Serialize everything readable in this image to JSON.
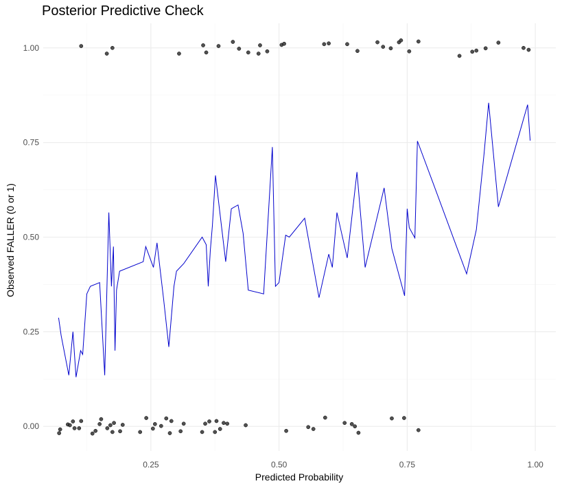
{
  "chart_data": {
    "type": "scatter",
    "title": "Posterior Predictive Check",
    "xlabel": "Predicted Probability",
    "ylabel": "Observed FALLER (0 or 1)",
    "xlim": [
      0.04,
      1.04
    ],
    "ylim": [
      -0.065,
      1.065
    ],
    "x_ticks": [
      0.25,
      0.5,
      0.75,
      1.0
    ],
    "x_tick_labels": [
      "0.25",
      "0.50",
      "0.75",
      "1.00"
    ],
    "y_ticks": [
      0.0,
      0.25,
      0.5,
      0.75,
      1.0
    ],
    "y_tick_labels": [
      "0.00",
      "0.25",
      "0.50",
      "0.75",
      "1.00"
    ],
    "grid": true,
    "colors": {
      "points": "#333333",
      "line": "#0000cc",
      "grid_major": "#ebebeb",
      "grid_minor": "#f5f5f5"
    },
    "series": [
      {
        "kind": "points",
        "x": [
          0.071,
          0.073,
          0.088,
          0.092,
          0.098,
          0.101,
          0.11,
          0.114,
          0.136,
          0.142,
          0.15,
          0.153,
          0.165,
          0.171,
          0.175,
          0.178,
          0.19,
          0.195,
          0.229,
          0.241,
          0.254,
          0.258,
          0.27,
          0.28,
          0.287,
          0.29,
          0.308,
          0.314,
          0.35,
          0.356,
          0.364,
          0.375,
          0.378,
          0.385,
          0.392,
          0.399,
          0.435,
          0.514,
          0.557,
          0.567,
          0.59,
          0.642,
          0.648,
          0.628,
          0.655,
          0.72,
          0.744,
          0.772,
          0.114,
          0.164,
          0.175,
          0.305,
          0.352,
          0.358,
          0.382,
          0.41,
          0.422,
          0.44,
          0.46,
          0.463,
          0.477,
          0.505,
          0.51,
          0.588,
          0.597,
          0.633,
          0.653,
          0.692,
          0.703,
          0.718,
          0.734,
          0.738,
          0.754,
          0.772,
          0.852,
          0.877,
          0.885,
          0.903,
          0.928,
          0.977,
          0.987
        ],
        "y": [
          -0.018,
          -0.008,
          0.005,
          0.003,
          0.013,
          -0.005,
          -0.005,
          0.014,
          -0.019,
          -0.012,
          0.006,
          0.019,
          -0.005,
          0.003,
          -0.015,
          0.009,
          -0.013,
          0.004,
          -0.015,
          0.022,
          -0.006,
          0.006,
          0.001,
          0.021,
          -0.018,
          0.014,
          -0.013,
          0.007,
          -0.015,
          0.007,
          0.013,
          -0.015,
          0.014,
          -0.007,
          0.009,
          0.007,
          0.003,
          -0.012,
          -0.002,
          -0.007,
          0.023,
          0.006,
          0.0,
          0.009,
          -0.017,
          0.021,
          0.022,
          -0.01,
          1.005,
          0.985,
          1.0,
          0.985,
          1.007,
          0.988,
          1.005,
          1.016,
          0.998,
          0.988,
          0.985,
          1.007,
          0.991,
          1.008,
          1.011,
          1.01,
          1.012,
          1.01,
          0.992,
          1.015,
          1.003,
          0.999,
          1.015,
          1.02,
          0.991,
          1.017,
          0.979,
          0.99,
          0.993,
          0.999,
          1.014,
          1.0,
          0.995
        ]
      },
      {
        "kind": "line",
        "x": [
          0.07,
          0.075,
          0.09,
          0.098,
          0.104,
          0.113,
          0.117,
          0.125,
          0.132,
          0.15,
          0.16,
          0.168,
          0.173,
          0.177,
          0.18,
          0.183,
          0.189,
          0.235,
          0.24,
          0.255,
          0.262,
          0.275,
          0.285,
          0.295,
          0.3,
          0.314,
          0.35,
          0.358,
          0.362,
          0.366,
          0.37,
          0.376,
          0.396,
          0.407,
          0.42,
          0.43,
          0.44,
          0.47,
          0.487,
          0.493,
          0.5,
          0.513,
          0.52,
          0.55,
          0.578,
          0.597,
          0.604,
          0.613,
          0.633,
          0.646,
          0.652,
          0.668,
          0.705,
          0.72,
          0.745,
          0.75,
          0.754,
          0.765,
          0.77,
          0.8,
          0.866,
          0.885,
          0.9,
          0.909,
          0.928,
          0.985,
          0.99
        ],
        "y": [
          0.287,
          0.24,
          0.135,
          0.25,
          0.13,
          0.2,
          0.19,
          0.35,
          0.37,
          0.38,
          0.135,
          0.565,
          0.37,
          0.475,
          0.2,
          0.36,
          0.41,
          0.435,
          0.475,
          0.42,
          0.485,
          0.335,
          0.21,
          0.37,
          0.41,
          0.43,
          0.5,
          0.48,
          0.37,
          0.465,
          0.53,
          0.663,
          0.435,
          0.575,
          0.585,
          0.51,
          0.36,
          0.35,
          0.738,
          0.37,
          0.38,
          0.505,
          0.5,
          0.55,
          0.34,
          0.455,
          0.42,
          0.565,
          0.445,
          0.6,
          0.672,
          0.42,
          0.63,
          0.47,
          0.345,
          0.575,
          0.525,
          0.498,
          0.754,
          0.645,
          0.403,
          0.52,
          0.72,
          0.855,
          0.58,
          0.85,
          0.755
        ]
      }
    ]
  }
}
